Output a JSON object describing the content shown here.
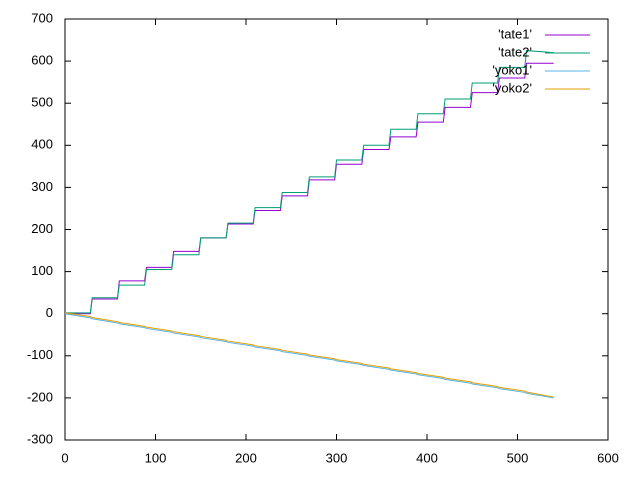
{
  "chart_data": {
    "type": "line",
    "x": [
      0,
      28,
      30,
      58,
      60,
      88,
      90,
      118,
      120,
      148,
      150,
      178,
      180,
      208,
      210,
      238,
      240,
      268,
      270,
      298,
      300,
      328,
      330,
      358,
      360,
      388,
      390,
      418,
      420,
      448,
      450,
      478,
      480,
      508,
      510,
      540
    ],
    "series": [
      {
        "name": "'tate1'",
        "color": "#9400d3",
        "values": [
          0,
          0,
          35,
          35,
          78,
          78,
          110,
          110,
          148,
          148,
          180,
          180,
          213,
          213,
          245,
          245,
          280,
          280,
          318,
          318,
          355,
          355,
          390,
          390,
          420,
          420,
          455,
          455,
          490,
          490,
          525,
          525,
          560,
          560,
          595,
          595
        ]
      },
      {
        "name": "'tate2'",
        "color": "#009e73",
        "values": [
          2,
          2,
          38,
          38,
          68,
          68,
          105,
          105,
          140,
          140,
          180,
          180,
          215,
          215,
          252,
          252,
          288,
          288,
          325,
          325,
          365,
          365,
          400,
          400,
          438,
          438,
          475,
          475,
          510,
          510,
          548,
          548,
          585,
          585,
          625,
          620
        ]
      },
      {
        "name": "'yoko1'",
        "color": "#56b4e9",
        "values": [
          0,
          -10,
          -12,
          -22,
          -24,
          -33,
          -35,
          -44,
          -46,
          -55,
          -57,
          -66,
          -68,
          -77,
          -79,
          -88,
          -90,
          -99,
          -101,
          -110,
          -112,
          -121,
          -123,
          -132,
          -134,
          -143,
          -145,
          -154,
          -156,
          -165,
          -167,
          -176,
          -178,
          -187,
          -189,
          -200
        ]
      },
      {
        "name": "'yoko2'",
        "color": "#e69f00",
        "values": [
          2,
          -7,
          -9,
          -19,
          -21,
          -30,
          -32,
          -41,
          -43,
          -52,
          -54,
          -63,
          -65,
          -74,
          -76,
          -85,
          -87,
          -96,
          -98,
          -107,
          -109,
          -118,
          -120,
          -129,
          -131,
          -140,
          -142,
          -151,
          -153,
          -162,
          -164,
          -173,
          -175,
          -184,
          -186,
          -198
        ]
      }
    ],
    "xlim": [
      0,
      600
    ],
    "xticks": [
      0,
      100,
      200,
      300,
      400,
      500,
      600
    ],
    "ylim": [
      -300,
      700
    ],
    "yticks": [
      -300,
      -200,
      -100,
      0,
      100,
      200,
      300,
      400,
      500,
      600,
      700
    ],
    "legend": "top-right"
  }
}
